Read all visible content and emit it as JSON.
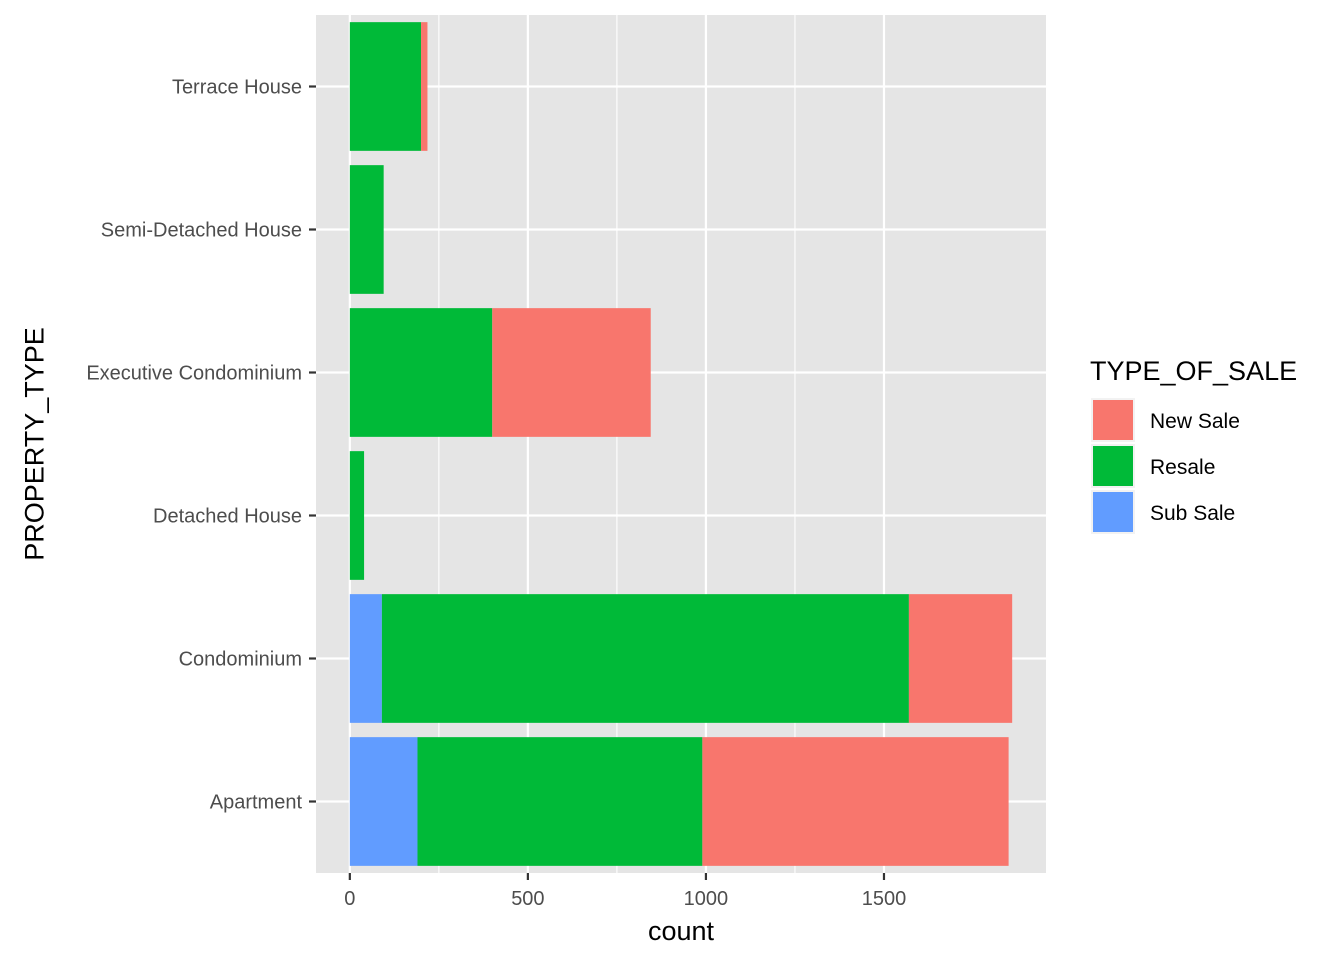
{
  "chart_data": {
    "type": "bar",
    "orientation": "horizontal",
    "stacked": true,
    "categories": [
      "Apartment",
      "Condominium",
      "Detached House",
      "Executive Condominium",
      "Semi-Detached House",
      "Terrace House"
    ],
    "series": [
      {
        "name": "Sub Sale",
        "values": [
          190,
          90,
          0,
          0,
          0,
          0
        ],
        "color": "#619CFF"
      },
      {
        "name": "Resale",
        "values": [
          800,
          1480,
          40,
          400,
          95,
          200
        ],
        "color": "#00BA38"
      },
      {
        "name": "New Sale",
        "values": [
          860,
          290,
          0,
          445,
          0,
          18
        ],
        "color": "#F8766D"
      }
    ],
    "xlabel": "count",
    "ylabel": "PROPERTY_TYPE",
    "xlim": [
      -95,
      1955
    ],
    "xticks": [
      0,
      500,
      1000,
      1500
    ],
    "xtick_labels": [
      "0",
      "500",
      "1000",
      "1500"
    ],
    "legend": {
      "title": "TYPE_OF_SALE",
      "position": "right",
      "entries": [
        {
          "label": "New Sale",
          "color": "#F8766D"
        },
        {
          "label": "Resale",
          "color": "#00BA38"
        },
        {
          "label": "Sub Sale",
          "color": "#619CFF"
        }
      ]
    },
    "grid": true,
    "panel_background": "#E5E5E5",
    "grid_color": "#FFFFFF"
  }
}
